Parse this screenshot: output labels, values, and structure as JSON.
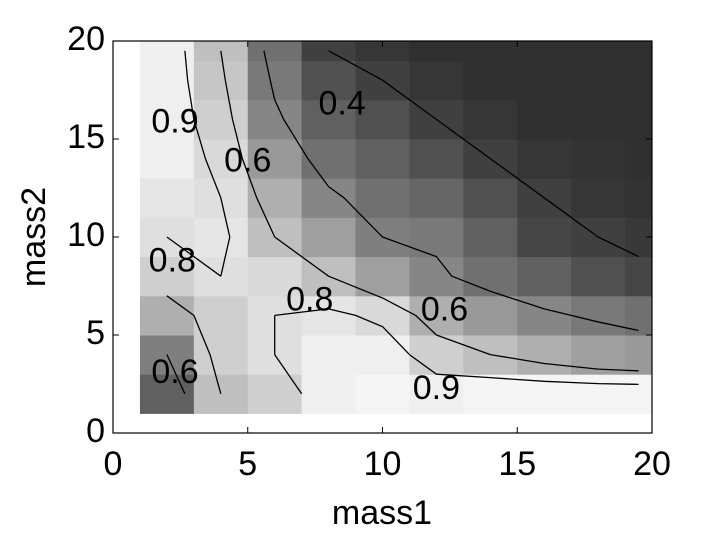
{
  "chart_data": {
    "type": "heatmap-contour",
    "xlabel": "mass1",
    "ylabel": "mass2",
    "xlim": [
      0,
      20
    ],
    "ylim": [
      0,
      20
    ],
    "xticks": [
      0,
      5,
      10,
      15,
      20
    ],
    "yticks": [
      0,
      5,
      10,
      15,
      20
    ],
    "x_edges": [
      1,
      3,
      5,
      7,
      9,
      11,
      13,
      15,
      17,
      19,
      20
    ],
    "y_edges": [
      1,
      3,
      5,
      7,
      9,
      11,
      13,
      15,
      17,
      19,
      20
    ],
    "clim": [
      0.2,
      1.0
    ],
    "colormap": "gray",
    "z": [
      [
        0.5,
        0.8,
        0.85,
        0.95,
        0.97,
        0.95,
        0.97,
        0.97,
        0.97,
        0.97
      ],
      [
        0.6,
        0.85,
        0.9,
        0.95,
        0.95,
        0.85,
        0.8,
        0.75,
        0.7,
        0.68
      ],
      [
        0.75,
        0.85,
        0.9,
        0.92,
        0.88,
        0.75,
        0.68,
        0.62,
        0.58,
        0.55
      ],
      [
        0.85,
        0.9,
        0.88,
        0.8,
        0.7,
        0.62,
        0.55,
        0.5,
        0.45,
        0.42
      ],
      [
        0.9,
        0.92,
        0.8,
        0.7,
        0.6,
        0.58,
        0.5,
        0.42,
        0.4,
        0.38
      ],
      [
        0.92,
        0.9,
        0.75,
        0.62,
        0.55,
        0.52,
        0.45,
        0.4,
        0.37,
        0.36
      ],
      [
        0.95,
        0.88,
        0.68,
        0.55,
        0.5,
        0.45,
        0.4,
        0.37,
        0.36,
        0.35
      ],
      [
        0.95,
        0.85,
        0.62,
        0.5,
        0.45,
        0.4,
        0.37,
        0.35,
        0.35,
        0.35
      ],
      [
        0.95,
        0.82,
        0.58,
        0.45,
        0.4,
        0.37,
        0.35,
        0.35,
        0.35,
        0.35
      ],
      [
        0.95,
        0.8,
        0.55,
        0.4,
        0.37,
        0.35,
        0.35,
        0.35,
        0.35,
        0.35
      ]
    ],
    "contour_levels": [
      0.4,
      0.6,
      0.8,
      0.9
    ],
    "contour_color": "#000000",
    "contour_labels": [
      {
        "x": 2.3,
        "y": 15.8,
        "value": 0.9
      },
      {
        "x": 5,
        "y": 13.8,
        "value": 0.6
      },
      {
        "x": 8.5,
        "y": 16.7,
        "value": 0.4
      },
      {
        "x": 2.2,
        "y": 8.7,
        "value": 0.8
      },
      {
        "x": 7.3,
        "y": 6.7,
        "value": 0.8
      },
      {
        "x": 12.3,
        "y": 6.2,
        "value": 0.6
      },
      {
        "x": 2.3,
        "y": 3,
        "value": 0.6
      },
      {
        "x": 12,
        "y": 2.2,
        "value": 0.9
      }
    ]
  }
}
